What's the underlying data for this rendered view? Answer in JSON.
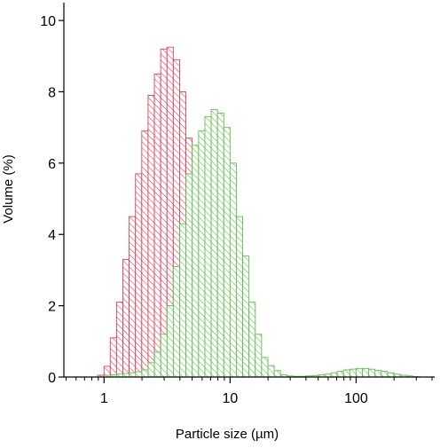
{
  "chart_data": {
    "type": "histogram",
    "title": "",
    "xlabel": "Particle size (µm)",
    "ylabel": "Volume (%)",
    "x_scale": "log",
    "xlim": [
      0.48,
      420
    ],
    "ylim": [
      0,
      10.5
    ],
    "x_ticks": [
      1,
      10,
      100
    ],
    "x_tick_labels": [
      "1",
      "10",
      "100"
    ],
    "y_ticks": [
      0,
      2,
      4,
      6,
      8,
      10
    ],
    "y_tick_labels": [
      "0",
      "2",
      "4",
      "6",
      "8",
      "10"
    ],
    "grid": false,
    "legend": "none",
    "bins_per_decade": 20,
    "series": [
      {
        "color": "#e0405a",
        "hatch": "diagonal",
        "bin_start": 0.89,
        "values": [
          0.05,
          0.3,
          1.1,
          2.1,
          3.3,
          4.5,
          5.7,
          6.9,
          7.9,
          8.5,
          9.2,
          9.25,
          8.9,
          8.0,
          6.7,
          5.0,
          3.8,
          2.2,
          1.05,
          0.4,
          0.1
        ]
      },
      {
        "color": "#5cc24a",
        "hatch": "diagonal",
        "bin_start": 1.0,
        "values": [
          0.05,
          0.06,
          0.08,
          0.1,
          0.12,
          0.15,
          0.2,
          0.4,
          0.7,
          1.2,
          2.0,
          3.1,
          4.3,
          5.7,
          6.5,
          6.9,
          7.3,
          7.5,
          7.4,
          7.0,
          6.0,
          4.5,
          3.4,
          2.1,
          1.2,
          0.55,
          0.32,
          0.18,
          0.06,
          0.03,
          0.02,
          0.02,
          0.03,
          0.04,
          0.06,
          0.08,
          0.12,
          0.16,
          0.2,
          0.22,
          0.24,
          0.24,
          0.22,
          0.19,
          0.16,
          0.12,
          0.08,
          0.05,
          0.03,
          0.01
        ]
      }
    ]
  }
}
